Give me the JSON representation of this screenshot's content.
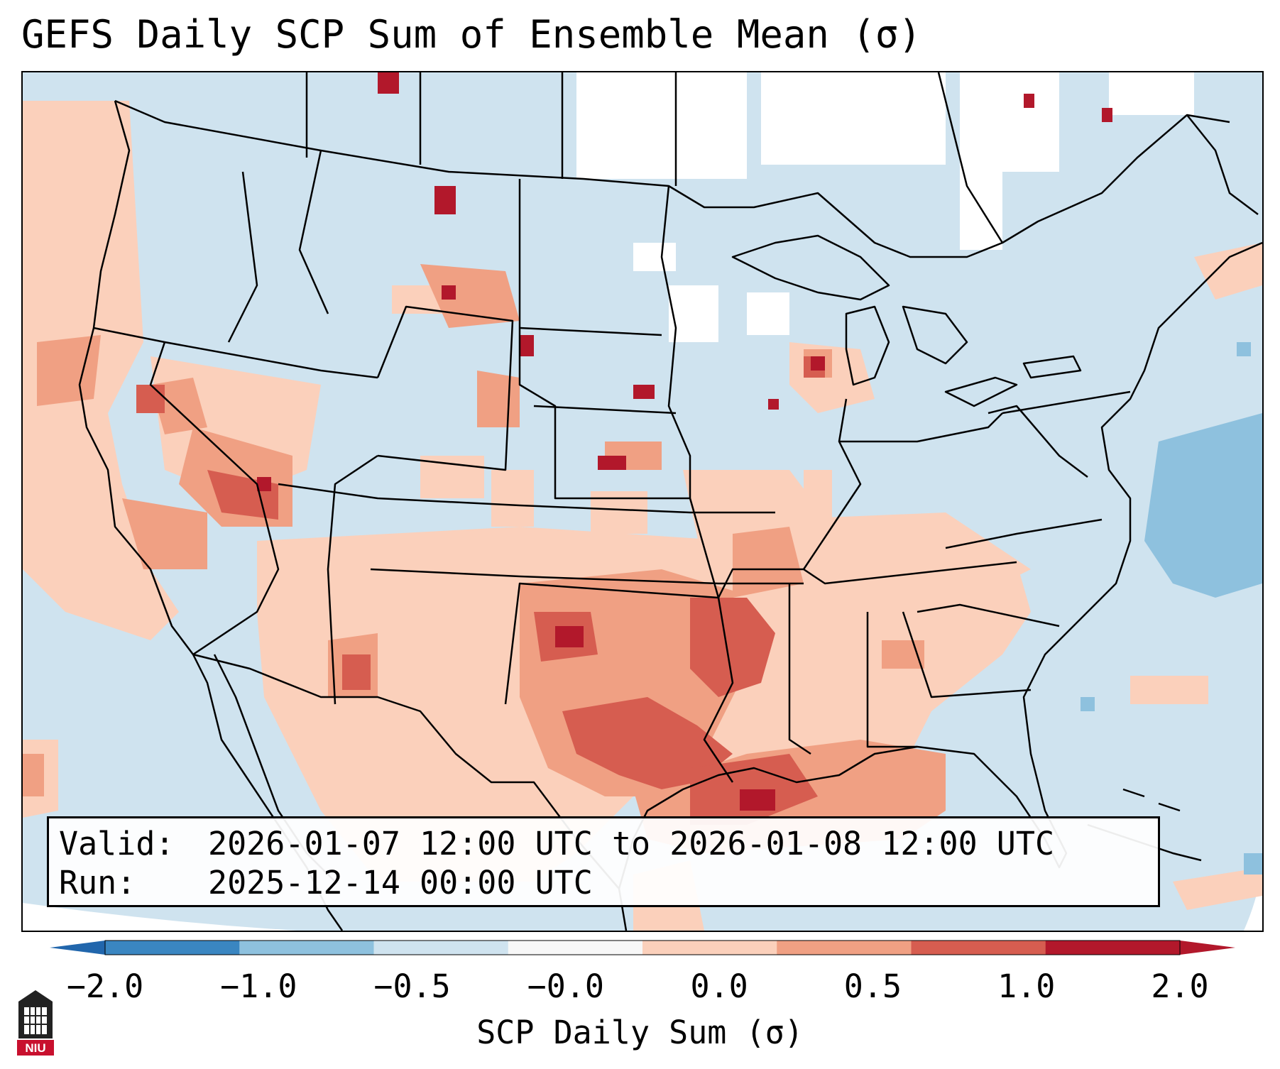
{
  "title": "GEFS Daily SCP Sum of Ensemble Mean (σ)",
  "info": {
    "valid_label": "Valid:",
    "valid_value": "2026-01-07 12:00 UTC to 2026-01-08 12:00 UTC",
    "run_label": "Run:",
    "run_value": "2025-12-14 00:00 UTC"
  },
  "colorbar": {
    "label": "SCP Daily Sum (σ)",
    "ticks": [
      "−2.0",
      "−1.0",
      "−0.5",
      "−0.0",
      "0.0",
      "0.5",
      "1.0",
      "2.0"
    ],
    "bin_colors": [
      "#3a86c1",
      "#8ec1de",
      "#cfe3ef",
      "#f7f7f7",
      "#fbd0bb",
      "#f0a083",
      "#d65d50",
      "#b2182b"
    ],
    "extend_low_color": "#2166ac",
    "extend_high_color": "#b2182b"
  },
  "map": {
    "background_color": "#cfe3ef",
    "border_color": "#000000"
  },
  "logo": {
    "text": "NIU",
    "color": "#c8102e"
  }
}
